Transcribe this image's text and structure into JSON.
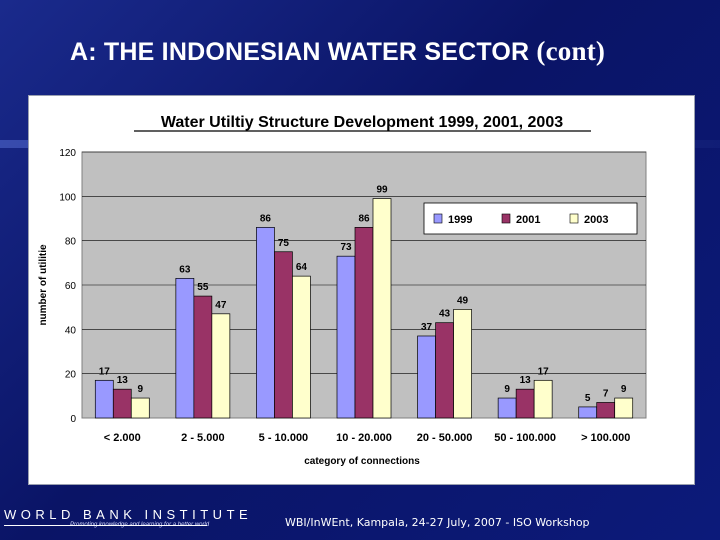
{
  "slide": {
    "title_main": "A: THE INDONESIAN WATER SECTOR",
    "title_suffix": "(cont)"
  },
  "footer": {
    "logo_name": "WORLD BANK INSTITUTE",
    "logo_tagline": "Promoting knowledge and learning for a better world",
    "caption": "WBI/InWEnt, Kampala,  24-27 July, 2007 - ISO Workshop"
  },
  "chart_data": {
    "type": "bar",
    "title": "Water Utiltiy Structure Development  1999, 2001, 2003",
    "xlabel": "category of connections",
    "ylabel": "number of utilitie",
    "ylim": [
      0,
      120
    ],
    "yticks": [
      0,
      20,
      40,
      60,
      80,
      100,
      120
    ],
    "grid": true,
    "legend_position": "top-right",
    "categories": [
      "< 2.000",
      "2 - 5.000",
      "5 - 10.000",
      "10 - 20.000",
      "20 - 50.000",
      "50 - 100.000",
      "> 100.000"
    ],
    "series": [
      {
        "name": "1999",
        "color": "#9999ff",
        "values": [
          17,
          63,
          86,
          73,
          37,
          9,
          5
        ]
      },
      {
        "name": "2001",
        "color": "#993366",
        "values": [
          13,
          55,
          75,
          86,
          43,
          13,
          7
        ]
      },
      {
        "name": "2003",
        "color": "#ffffcc",
        "values": [
          9,
          47,
          64,
          99,
          49,
          17,
          9
        ]
      }
    ]
  }
}
